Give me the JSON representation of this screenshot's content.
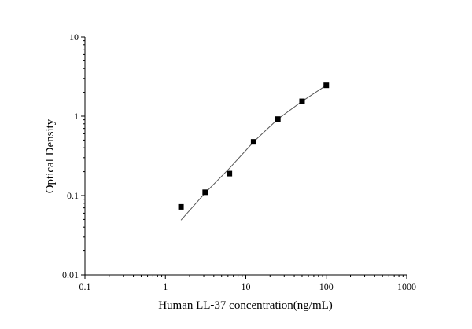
{
  "chart_data": {
    "type": "scatter",
    "title": "",
    "xlabel": "Human LL-37 concentration(ng/mL)",
    "ylabel": "Optical Density",
    "xscale": "log",
    "yscale": "log",
    "xlim": [
      0.1,
      1000
    ],
    "ylim": [
      0.01,
      10
    ],
    "xticks": [
      "0.1",
      "1",
      "10",
      "100",
      "1000"
    ],
    "yticks": [
      "0.01",
      "0.1",
      "1",
      "10"
    ],
    "grid": false,
    "series": [
      {
        "kind": "points",
        "marker": "square",
        "color": "#000000",
        "x": [
          1.5625,
          3.125,
          6.25,
          12.5,
          25,
          50,
          100
        ],
        "y": [
          0.072,
          0.11,
          0.189,
          0.475,
          0.919,
          1.54,
          2.45
        ]
      },
      {
        "kind": "fit-line",
        "color": "#555555",
        "x": [
          1.5625,
          3.125,
          6.25,
          12.5,
          25,
          50,
          100
        ],
        "y": [
          0.049,
          0.108,
          0.22,
          0.475,
          0.919,
          1.54,
          2.45
        ]
      }
    ]
  }
}
